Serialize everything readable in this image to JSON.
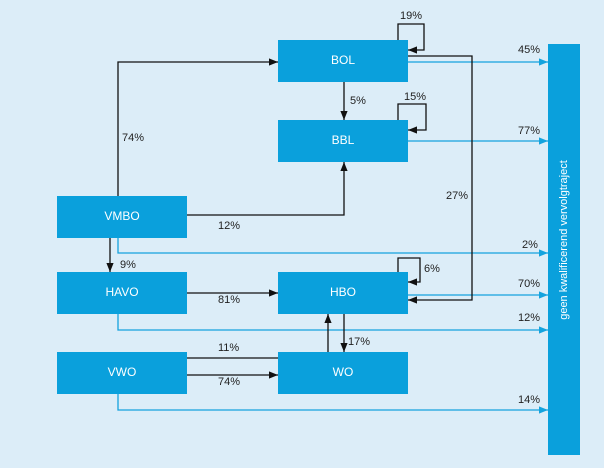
{
  "nodes": [
    {
      "label": "BOL"
    },
    {
      "label": "BBL"
    },
    {
      "label": "VMBO"
    },
    {
      "label": "HAVO"
    },
    {
      "label": "HBO"
    },
    {
      "label": "VWO"
    },
    {
      "label": "WO"
    },
    {
      "label": "geen kwalificerend vervolgtraject"
    }
  ],
  "edges": [
    {
      "from": "VMBO",
      "to": "BOL",
      "label": "74%"
    },
    {
      "from": "VMBO",
      "to": "BBL",
      "label": "12%"
    },
    {
      "from": "BOL",
      "to": "BBL",
      "label": "5%"
    },
    {
      "from": "BOL",
      "to": "BOL",
      "label": "19%"
    },
    {
      "from": "BBL",
      "to": "BBL",
      "label": "15%"
    },
    {
      "from": "BOL",
      "to": "HBO",
      "label": "27%"
    },
    {
      "from": "VMBO",
      "to": "HAVO",
      "label": "9%"
    },
    {
      "from": "HAVO",
      "to": "HBO",
      "label": "81%"
    },
    {
      "from": "HBO",
      "to": "HBO",
      "label": "6%"
    },
    {
      "from": "HBO",
      "to": "WO",
      "label": "17%"
    },
    {
      "from": "VWO",
      "to": "HBO",
      "label": "11%"
    },
    {
      "from": "VWO",
      "to": "WO",
      "label": "74%"
    },
    {
      "from": "BOL",
      "to": "geen kwalificerend vervolgtraject",
      "label": "45%"
    },
    {
      "from": "BBL",
      "to": "geen kwalificerend vervolgtraject",
      "label": "77%"
    },
    {
      "from": "VMBO",
      "to": "geen kwalificerend vervolgtraject",
      "label": "2%"
    },
    {
      "from": "HBO",
      "to": "geen kwalificerend vervolgtraject",
      "label": "70%"
    },
    {
      "from": "HAVO",
      "to": "geen kwalificerend vervolgtraject",
      "label": "12%"
    },
    {
      "from": "VWO",
      "to": "geen kwalificerend vervolgtraject",
      "label": "14%"
    }
  ]
}
